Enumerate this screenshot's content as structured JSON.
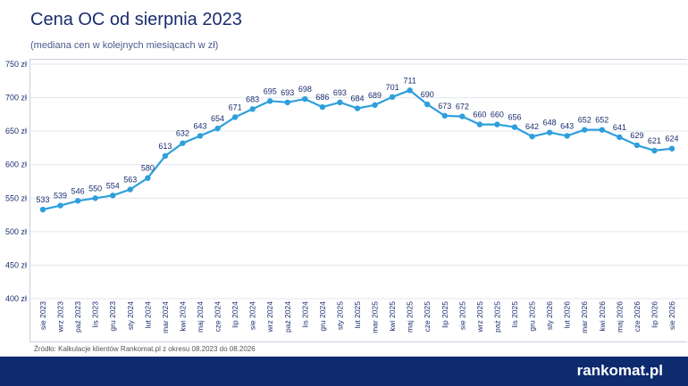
{
  "header": {
    "title": "Cena OC od sierpnia 2023",
    "subtitle": "(mediana cen w kolejnych miesiącach w zł)"
  },
  "source": "Źródło: Kalkulacje klientów Rankomat.pl z okresu 08.2023 do 08.2026",
  "brand": "rankomat.pl",
  "colors": {
    "line": "#2e9fdc",
    "text": "#1a2d6e",
    "footer": "#0d2b6e"
  },
  "chart_data": {
    "type": "line",
    "title": "Cena OC od sierpnia 2023",
    "subtitle": "(mediana cen w kolejnych miesiącach w zł)",
    "categories": [
      "sie 2023",
      "wrz 2023",
      "paź 2023",
      "lis 2023",
      "gru 2023",
      "sty 2024",
      "lut 2024",
      "mar 2024",
      "kwi 2024",
      "maj 2024",
      "cze 2024",
      "lip 2024",
      "sie 2024",
      "wrz 2024",
      "paź 2024",
      "lis 2024",
      "gru 2024",
      "sty 2025",
      "lut 2025",
      "mar 2025",
      "kwi 2025",
      "maj 2025",
      "cze 2025",
      "lip 2025",
      "sie 2025",
      "wrz 2025",
      "paź 2025",
      "lis 2025",
      "gru 2025",
      "sty 2026",
      "lut 2026",
      "mar 2026",
      "kwi 2026",
      "maj 2026",
      "cze 2026",
      "lip 2026",
      "sie 2026"
    ],
    "values": [
      533,
      539,
      546,
      550,
      554,
      563,
      580,
      613,
      632,
      643,
      654,
      671,
      683,
      695,
      693,
      698,
      686,
      693,
      684,
      689,
      701,
      711,
      690,
      673,
      672,
      660,
      660,
      656,
      642,
      648,
      643,
      652,
      652,
      641,
      629,
      621,
      624
    ],
    "yticks": [
      "400 zł",
      "450 zł",
      "500 zł",
      "550 zł",
      "600 zł",
      "650 zł",
      "700 zł",
      "750 zł"
    ],
    "ylim": [
      400,
      750
    ],
    "grid": true,
    "data_labels": true
  }
}
